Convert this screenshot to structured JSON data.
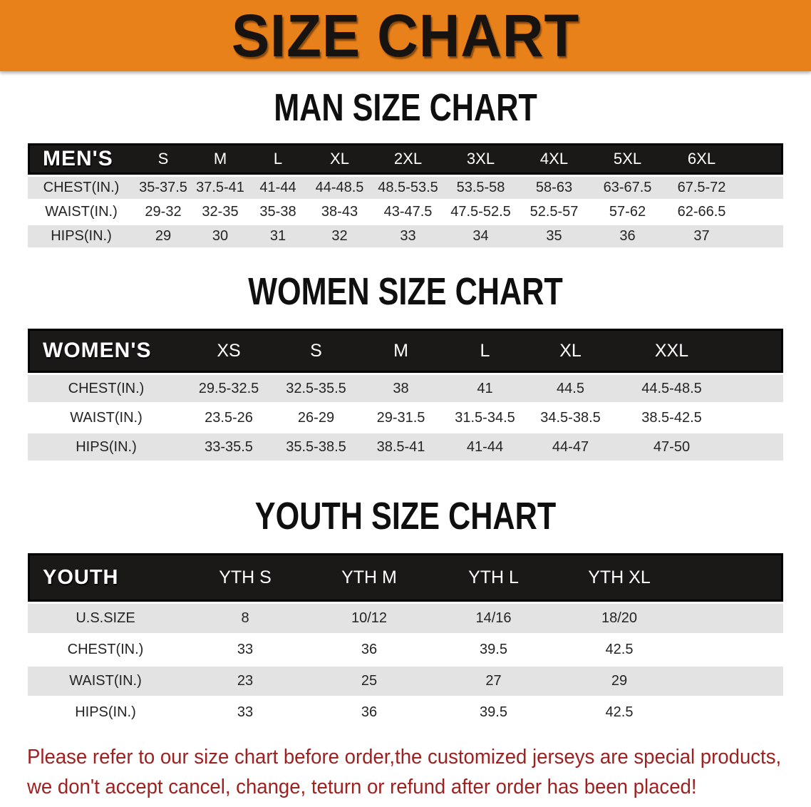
{
  "banner": {
    "title": "SIZE CHART",
    "bg_color": "#E8811A"
  },
  "sections": [
    {
      "title": "MAN SIZE CHART",
      "table": {
        "header_label": "MEN'S",
        "columns": [
          "S",
          "M",
          "L",
          "XL",
          "2XL",
          "3XL",
          "4XL",
          "5XL",
          "6XL"
        ],
        "rows": [
          {
            "label": "CHEST(IN.)",
            "values": [
              "35-37.5",
              "37.5-41",
              "41-44",
              "44-48.5",
              "48.5-53.5",
              "53.5-58",
              "58-63",
              "63-67.5",
              "67.5-72"
            ]
          },
          {
            "label": "WAIST(IN.)",
            "values": [
              "29-32",
              "32-35",
              "35-38",
              "38-43",
              "43-47.5",
              "47.5-52.5",
              "52.5-57",
              "57-62",
              "62-66.5"
            ]
          },
          {
            "label": "HIPS(IN.)",
            "values": [
              "29",
              "30",
              "31",
              "32",
              "33",
              "34",
              "35",
              "36",
              "37"
            ]
          }
        ]
      }
    },
    {
      "title": "WOMEN SIZE CHART",
      "table": {
        "header_label": "WOMEN'S",
        "columns": [
          "XS",
          "S",
          "M",
          "L",
          "XL",
          "XXL"
        ],
        "rows": [
          {
            "label": "CHEST(IN.)",
            "values": [
              "29.5-32.5",
              "32.5-35.5",
              "38",
              "41",
              "44.5",
              "44.5-48.5"
            ]
          },
          {
            "label": "WAIST(IN.)",
            "values": [
              "23.5-26",
              "26-29",
              "29-31.5",
              "31.5-34.5",
              "34.5-38.5",
              "38.5-42.5"
            ]
          },
          {
            "label": "HIPS(IN.)",
            "values": [
              "33-35.5",
              "35.5-38.5",
              "38.5-41",
              "41-44",
              "44-47",
              "47-50"
            ]
          }
        ]
      }
    },
    {
      "title": "YOUTH SIZE CHART",
      "table": {
        "header_label": "YOUTH",
        "columns": [
          "YTH S",
          "YTH M",
          "YTH L",
          "YTH XL"
        ],
        "rows": [
          {
            "label": "U.S.SIZE",
            "values": [
              "8",
              "10/12",
              "14/16",
              "18/20"
            ]
          },
          {
            "label": "CHEST(IN.)",
            "values": [
              "33",
              "36",
              "39.5",
              "42.5"
            ]
          },
          {
            "label": "WAIST(IN.)",
            "values": [
              "23",
              "25",
              "27",
              "29"
            ]
          },
          {
            "label": "HIPS(IN.)",
            "values": [
              "33",
              "36",
              "39.5",
              "42.5"
            ]
          }
        ]
      }
    }
  ],
  "footnote": {
    "line1": "Please refer to our size chart before order,the customized jerseys are special products,",
    "line2": "we don't accept cancel, change, teturn or refund after order has been placed!",
    "color": "#9E2121"
  }
}
